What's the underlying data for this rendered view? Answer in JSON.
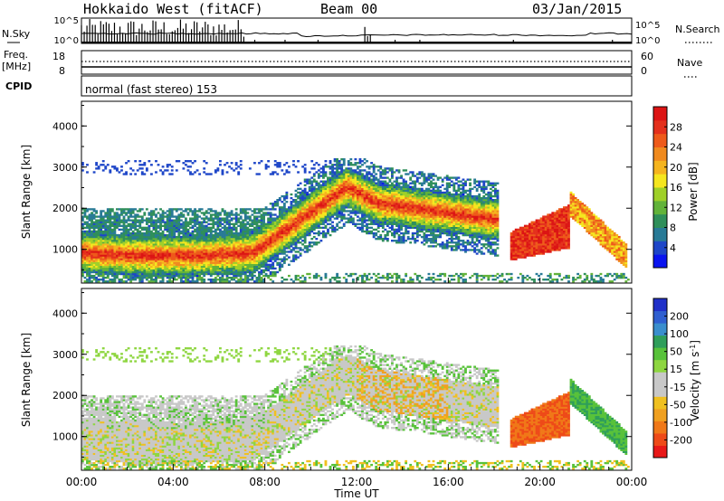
{
  "header": {
    "station": "Hokkaido West (fitACF)",
    "beam": "Beam 00",
    "date": "03/Jan/2015"
  },
  "top_panels": {
    "nsky_label": "N.Sky",
    "nsky_ticks": [
      "10^5",
      "10^0"
    ],
    "nsearch_label": "N.Search",
    "nsearch_ticks": [
      "10^5",
      "10^0"
    ],
    "freq_label_1": "Freq.",
    "freq_label_2": "[MHz]",
    "freq_ticks": [
      "18",
      "8"
    ],
    "nave_label": "Nave",
    "nave_ticks": [
      "60",
      "0"
    ],
    "cpid_label": "CPID",
    "cpid_text": "normal (fast stereo) 153"
  },
  "chart_data": [
    {
      "type": "heatmap",
      "name": "power",
      "ylabel": "Slant Range [km]",
      "y_ticks": [
        1000,
        2000,
        3000,
        4000
      ],
      "ylim": [
        180,
        4600
      ],
      "xlim": [
        0,
        24
      ],
      "colorbar": {
        "label": "Power [dB]",
        "ticks": [
          "4",
          "8",
          "12",
          "16",
          "20",
          "24",
          "28"
        ],
        "colors": [
          "#0a14f0",
          "#1e46c8",
          "#287a96",
          "#2f8f5a",
          "#62b33a",
          "#9fd028",
          "#f5e61e",
          "#f5b41e",
          "#f08a1e",
          "#ee5a1a",
          "#e4301c",
          "#dc1414"
        ]
      }
    },
    {
      "type": "heatmap",
      "name": "velocity",
      "ylabel": "Slant Range [km]",
      "y_ticks": [
        1000,
        2000,
        3000,
        4000
      ],
      "ylim": [
        180,
        4600
      ],
      "xlim": [
        0,
        24
      ],
      "xlabel": "Time UT",
      "x_ticks": [
        "00:00",
        "04:00",
        "08:00",
        "12:00",
        "16:00",
        "20:00",
        "00:00"
      ],
      "colorbar": {
        "label": "Velocity [m s",
        "label_sup": "-1",
        "label_end": "]",
        "ticks": [
          "200",
          "100",
          "50",
          "15",
          "-15",
          "-50",
          "-100",
          "-200"
        ],
        "colors": [
          "#2030c8",
          "#2f5fd0",
          "#3a8ecd",
          "#2f9e5a",
          "#58c23a",
          "#8ed640",
          "#c8c8c8",
          "#c8c8c8",
          "#f0c020",
          "#f0a020",
          "#f07818",
          "#ee4a18",
          "#e81818"
        ]
      }
    }
  ]
}
